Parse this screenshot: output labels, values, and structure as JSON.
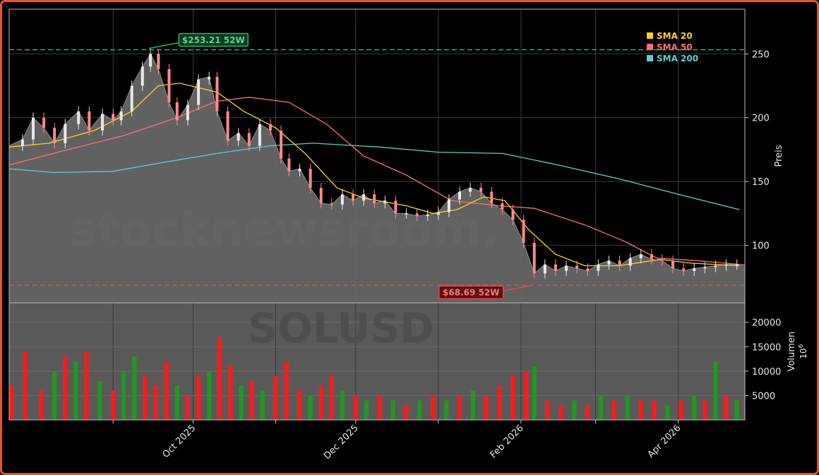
{
  "chart_data": {
    "type": "candlestick",
    "symbol": "SOLUSD",
    "watermark": "stocknewsroom.",
    "colors": {
      "frame": "#e8541c",
      "background": "#000000",
      "panel": "#595959",
      "up": "#1e9a1e",
      "down": "#ff1a1a",
      "sma20": "#ffd21a",
      "sma50": "#ff7070",
      "sma200": "#5ccfcf",
      "high_line": "#27b36a",
      "low_line": "#e84545"
    },
    "price_axis": {
      "label": "Preis",
      "ticks": [
        100,
        150,
        200,
        250
      ],
      "ylim": [
        55,
        285
      ]
    },
    "volume_axis": {
      "label": "Volumen",
      "unit": "10^6",
      "ticks": [
        5000,
        10000,
        15000,
        20000
      ],
      "ylim": [
        0,
        24000
      ]
    },
    "x_axis": {
      "start": "2025-07-24",
      "end": "2026-04-26",
      "tick_labels": [
        {
          "date": "2025-10-01",
          "label": "Oct 2025"
        },
        {
          "date": "2025-12-01",
          "label": "Dec 2025"
        },
        {
          "date": "2026-02-01",
          "label": "Feb 2026"
        },
        {
          "date": "2026-04-01",
          "label": "Apr 2026"
        }
      ],
      "minor_gridlines": [
        "2025-09-01",
        "2025-11-01",
        "2026-01-01",
        "2026-03-01"
      ]
    },
    "legend": {
      "position": "top-right",
      "items": [
        {
          "label": "SMA 20",
          "key": "sma20"
        },
        {
          "label": "SMA 50",
          "key": "sma50"
        },
        {
          "label": "SMA 200",
          "key": "sma200"
        }
      ]
    },
    "annotations": {
      "high": {
        "label": "$253.21 52W",
        "value": 253.21,
        "date": "2025-09-14"
      },
      "low": {
        "label": "$68.69 52W",
        "value": 68.69,
        "date": "2026-02-06"
      }
    },
    "last_close": 85,
    "close_series": [
      [
        "2025-07-24",
        178
      ],
      [
        "2025-07-29",
        183
      ],
      [
        "2025-08-02",
        200
      ],
      [
        "2025-08-06",
        192
      ],
      [
        "2025-08-10",
        180
      ],
      [
        "2025-08-14",
        195
      ],
      [
        "2025-08-19",
        205
      ],
      [
        "2025-08-23",
        190
      ],
      [
        "2025-08-28",
        203
      ],
      [
        "2025-09-01",
        198
      ],
      [
        "2025-09-04",
        205
      ],
      [
        "2025-09-08",
        225
      ],
      [
        "2025-09-12",
        240
      ],
      [
        "2025-09-15",
        250
      ],
      [
        "2025-09-18",
        238
      ],
      [
        "2025-09-22",
        212
      ],
      [
        "2025-09-25",
        198
      ],
      [
        "2025-09-29",
        210
      ],
      [
        "2025-10-03",
        230
      ],
      [
        "2025-10-07",
        232
      ],
      [
        "2025-10-10",
        205
      ],
      [
        "2025-10-14",
        182
      ],
      [
        "2025-10-18",
        188
      ],
      [
        "2025-10-22",
        178
      ],
      [
        "2025-10-26",
        195
      ],
      [
        "2025-10-30",
        190
      ],
      [
        "2025-11-03",
        168
      ],
      [
        "2025-11-06",
        158
      ],
      [
        "2025-11-10",
        160
      ],
      [
        "2025-11-14",
        145
      ],
      [
        "2025-11-18",
        133
      ],
      [
        "2025-11-22",
        132
      ],
      [
        "2025-11-26",
        140
      ],
      [
        "2025-11-30",
        135
      ],
      [
        "2025-12-04",
        140
      ],
      [
        "2025-12-08",
        133
      ],
      [
        "2025-12-12",
        135
      ],
      [
        "2025-12-16",
        125
      ],
      [
        "2025-12-20",
        125
      ],
      [
        "2025-12-24",
        123
      ],
      [
        "2025-12-28",
        124
      ],
      [
        "2026-01-01",
        126
      ],
      [
        "2026-01-05",
        136
      ],
      [
        "2026-01-09",
        142
      ],
      [
        "2026-01-13",
        145
      ],
      [
        "2026-01-17",
        142
      ],
      [
        "2026-01-21",
        133
      ],
      [
        "2026-01-25",
        128
      ],
      [
        "2026-01-29",
        120
      ],
      [
        "2026-02-02",
        102
      ],
      [
        "2026-02-06",
        78
      ],
      [
        "2026-02-10",
        85
      ],
      [
        "2026-02-14",
        80
      ],
      [
        "2026-02-18",
        84
      ],
      [
        "2026-02-22",
        82
      ],
      [
        "2026-02-26",
        80
      ],
      [
        "2026-03-02",
        85
      ],
      [
        "2026-03-06",
        88
      ],
      [
        "2026-03-10",
        84
      ],
      [
        "2026-03-14",
        90
      ],
      [
        "2026-03-18",
        93
      ],
      [
        "2026-03-22",
        89
      ],
      [
        "2026-03-26",
        88
      ],
      [
        "2026-03-30",
        82
      ],
      [
        "2026-04-03",
        80
      ],
      [
        "2026-04-07",
        82
      ],
      [
        "2026-04-11",
        83
      ],
      [
        "2026-04-15",
        84
      ],
      [
        "2026-04-19",
        85
      ],
      [
        "2026-04-23",
        85
      ]
    ],
    "sma20": [
      [
        "2025-07-24",
        177
      ],
      [
        "2025-08-08",
        180
      ],
      [
        "2025-08-25",
        190
      ],
      [
        "2025-09-08",
        205
      ],
      [
        "2025-09-18",
        225
      ],
      [
        "2025-09-26",
        227
      ],
      [
        "2025-10-10",
        220
      ],
      [
        "2025-10-20",
        205
      ],
      [
        "2025-11-01",
        192
      ],
      [
        "2025-11-12",
        172
      ],
      [
        "2025-11-24",
        145
      ],
      [
        "2025-12-04",
        137
      ],
      [
        "2025-12-20",
        131
      ],
      [
        "2025-12-30",
        125
      ],
      [
        "2026-01-08",
        128
      ],
      [
        "2026-01-18",
        138
      ],
      [
        "2026-01-26",
        135
      ],
      [
        "2026-02-04",
        112
      ],
      [
        "2026-02-14",
        93
      ],
      [
        "2026-02-25",
        84
      ],
      [
        "2026-03-10",
        84
      ],
      [
        "2026-03-25",
        89
      ],
      [
        "2026-04-06",
        86
      ],
      [
        "2026-04-24",
        84
      ]
    ],
    "sma50": [
      [
        "2025-07-24",
        163
      ],
      [
        "2025-08-15",
        175
      ],
      [
        "2025-09-05",
        186
      ],
      [
        "2025-09-25",
        200
      ],
      [
        "2025-10-10",
        213
      ],
      [
        "2025-10-22",
        216
      ],
      [
        "2025-11-06",
        212
      ],
      [
        "2025-11-20",
        195
      ],
      [
        "2025-12-04",
        170
      ],
      [
        "2025-12-20",
        155
      ],
      [
        "2026-01-06",
        135
      ],
      [
        "2026-01-24",
        131
      ],
      [
        "2026-02-06",
        129
      ],
      [
        "2026-02-25",
        116
      ],
      [
        "2026-03-12",
        103
      ],
      [
        "2026-03-24",
        90
      ],
      [
        "2026-04-08",
        88
      ],
      [
        "2026-04-24",
        85
      ]
    ],
    "sma200": [
      [
        "2025-07-24",
        160
      ],
      [
        "2025-08-10",
        157
      ],
      [
        "2025-09-01",
        158
      ],
      [
        "2025-09-20",
        165
      ],
      [
        "2025-10-10",
        172
      ],
      [
        "2025-10-30",
        178
      ],
      [
        "2025-11-15",
        180
      ],
      [
        "2025-12-10",
        177
      ],
      [
        "2026-01-01",
        173
      ],
      [
        "2026-01-25",
        172
      ],
      [
        "2026-02-15",
        163
      ],
      [
        "2026-03-10",
        152
      ],
      [
        "2026-04-01",
        140
      ],
      [
        "2026-04-24",
        128
      ]
    ],
    "volume_series": [
      [
        "2025-07-25",
        7000,
        "down"
      ],
      [
        "2025-07-30",
        14000,
        "down"
      ],
      [
        "2025-08-05",
        6000,
        "down"
      ],
      [
        "2025-08-10",
        10000,
        "up"
      ],
      [
        "2025-08-14",
        13000,
        "down"
      ],
      [
        "2025-08-18",
        12000,
        "up"
      ],
      [
        "2025-08-22",
        14000,
        "down"
      ],
      [
        "2025-08-27",
        8000,
        "up"
      ],
      [
        "2025-09-01",
        6000,
        "down"
      ],
      [
        "2025-09-05",
        10000,
        "up"
      ],
      [
        "2025-09-09",
        13000,
        "up"
      ],
      [
        "2025-09-13",
        9000,
        "down"
      ],
      [
        "2025-09-17",
        7000,
        "down"
      ],
      [
        "2025-09-21",
        12000,
        "down"
      ],
      [
        "2025-09-25",
        7000,
        "up"
      ],
      [
        "2025-09-29",
        5000,
        "down"
      ],
      [
        "2025-10-03",
        9000,
        "down"
      ],
      [
        "2025-10-07",
        10000,
        "up"
      ],
      [
        "2025-10-11",
        17000,
        "down"
      ],
      [
        "2025-10-15",
        11000,
        "down"
      ],
      [
        "2025-10-19",
        7000,
        "up"
      ],
      [
        "2025-10-23",
        8000,
        "down"
      ],
      [
        "2025-10-27",
        6000,
        "up"
      ],
      [
        "2025-11-01",
        9000,
        "down"
      ],
      [
        "2025-11-05",
        12000,
        "down"
      ],
      [
        "2025-11-10",
        6000,
        "down"
      ],
      [
        "2025-11-14",
        5000,
        "up"
      ],
      [
        "2025-11-18",
        7000,
        "down"
      ],
      [
        "2025-11-22",
        9000,
        "down"
      ],
      [
        "2025-11-26",
        6000,
        "up"
      ],
      [
        "2025-12-01",
        5000,
        "down"
      ],
      [
        "2025-12-05",
        4000,
        "up"
      ],
      [
        "2025-12-10",
        5000,
        "down"
      ],
      [
        "2025-12-15",
        4000,
        "up"
      ],
      [
        "2025-12-20",
        3000,
        "down"
      ],
      [
        "2025-12-25",
        4000,
        "up"
      ],
      [
        "2025-12-30",
        5000,
        "down"
      ],
      [
        "2026-01-04",
        4000,
        "up"
      ],
      [
        "2026-01-09",
        5000,
        "down"
      ],
      [
        "2026-01-14",
        6000,
        "up"
      ],
      [
        "2026-01-19",
        5000,
        "down"
      ],
      [
        "2026-01-24",
        7000,
        "down"
      ],
      [
        "2026-01-29",
        9000,
        "down"
      ],
      [
        "2026-02-03",
        10000,
        "down"
      ],
      [
        "2026-02-06",
        11000,
        "up"
      ],
      [
        "2026-02-11",
        4000,
        "down"
      ],
      [
        "2026-02-16",
        3000,
        "down"
      ],
      [
        "2026-02-21",
        4000,
        "up"
      ],
      [
        "2026-02-26",
        3000,
        "down"
      ],
      [
        "2026-03-03",
        5000,
        "up"
      ],
      [
        "2026-03-08",
        4000,
        "down"
      ],
      [
        "2026-03-13",
        5000,
        "up"
      ],
      [
        "2026-03-18",
        4000,
        "down"
      ],
      [
        "2026-03-23",
        4000,
        "down"
      ],
      [
        "2026-03-28",
        3000,
        "up"
      ],
      [
        "2026-04-02",
        4000,
        "down"
      ],
      [
        "2026-04-07",
        5000,
        "up"
      ],
      [
        "2026-04-11",
        4000,
        "down"
      ],
      [
        "2026-04-15",
        12000,
        "up"
      ],
      [
        "2026-04-19",
        5000,
        "down"
      ],
      [
        "2026-04-23",
        4000,
        "up"
      ]
    ]
  }
}
